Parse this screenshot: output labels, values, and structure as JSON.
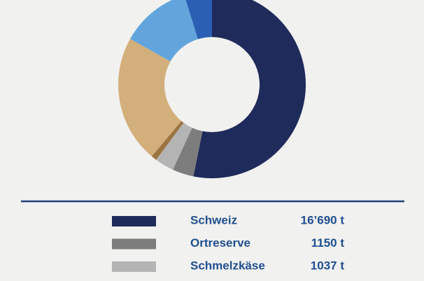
{
  "chart_data": {
    "type": "pie",
    "categories": [
      "Schweiz",
      "Ortreserve",
      "Schmelzkäse",
      null,
      null,
      null,
      null
    ],
    "values": [
      16690,
      1150,
      1037,
      300,
      6900,
      3800,
      1500
    ],
    "value_labels": [
      "16’690 t",
      "1150 t",
      "1037 t",
      null,
      null,
      null,
      null
    ],
    "colors": [
      "#1f2b5a",
      "#7d7d7d",
      "#b4b4b4",
      "#9c7440",
      "#d3af7b",
      "#62a5dd",
      "#2a5fb3"
    ]
  }
}
